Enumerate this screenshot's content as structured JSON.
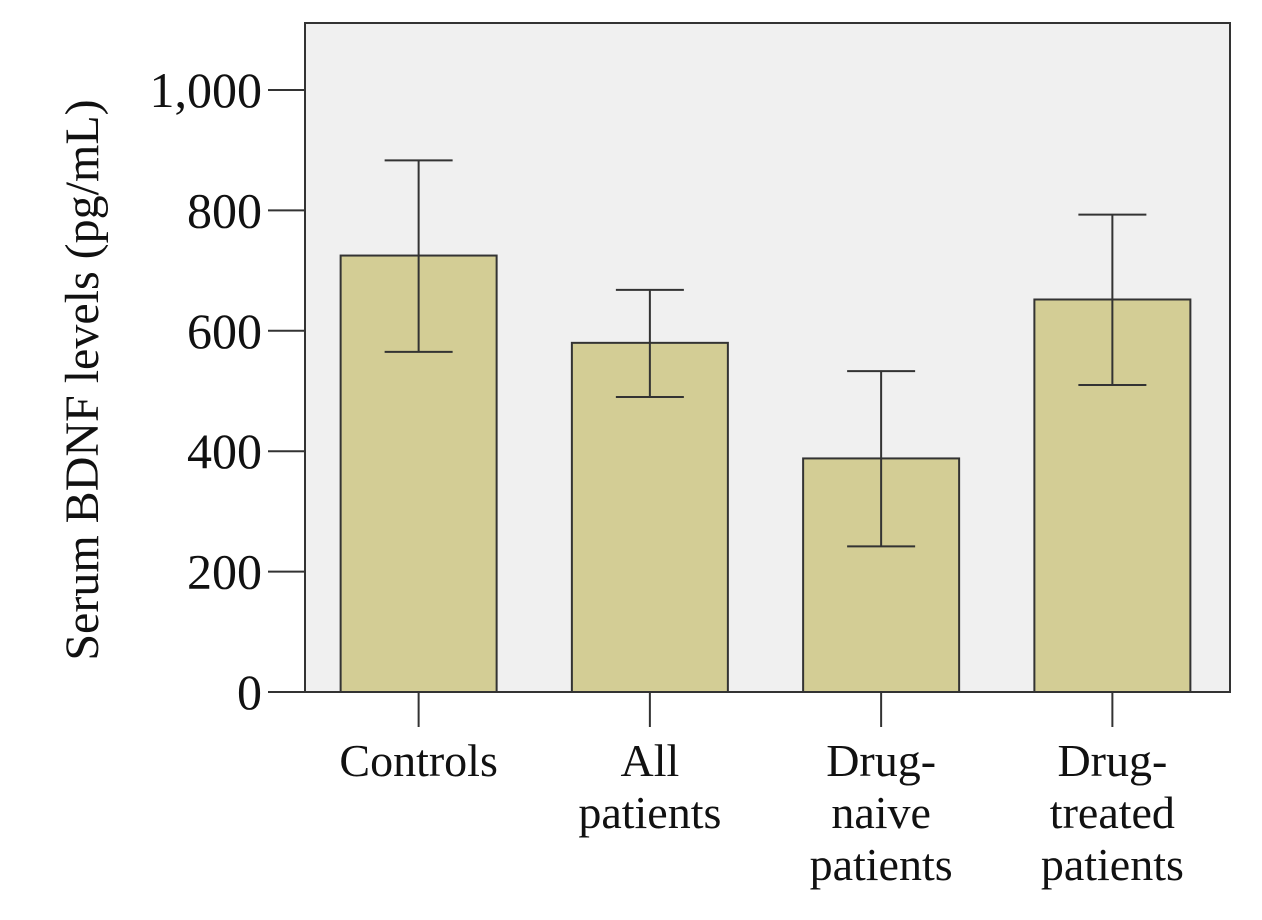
{
  "chart_data": {
    "type": "bar",
    "ylabel": "Serum BDNF levels (pg/mL)",
    "ylim": [
      0,
      1100
    ],
    "yticks": [
      0,
      200,
      400,
      600,
      800,
      1000
    ],
    "ytick_labels": [
      "0",
      "200",
      "400",
      "600",
      "800",
      "1,000"
    ],
    "categories": [
      [
        "Controls"
      ],
      [
        "All",
        "patients"
      ],
      [
        "Drug-",
        "naive",
        "patients"
      ],
      [
        "Drug-",
        "treated",
        "patients"
      ]
    ],
    "values": [
      725,
      580,
      388,
      652
    ],
    "error_low": [
      565,
      490,
      242,
      510
    ],
    "error_high": [
      883,
      668,
      533,
      793
    ],
    "colors": {
      "bar_fill": "#d3cd95",
      "plot_background": "#f0f0f0",
      "axis": "#333333"
    },
    "grid": false,
    "legend": "none"
  }
}
